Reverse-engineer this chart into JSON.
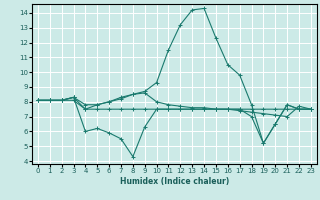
{
  "title": "",
  "xlabel": "Humidex (Indice chaleur)",
  "ylabel": "",
  "xlim": [
    -0.5,
    23.5
  ],
  "ylim": [
    3.8,
    14.6
  ],
  "yticks": [
    4,
    5,
    6,
    7,
    8,
    9,
    10,
    11,
    12,
    13,
    14
  ],
  "xticks": [
    0,
    1,
    2,
    3,
    4,
    5,
    6,
    7,
    8,
    9,
    10,
    11,
    12,
    13,
    14,
    15,
    16,
    17,
    18,
    19,
    20,
    21,
    22,
    23
  ],
  "bg_color": "#cceae7",
  "grid_color": "#ffffff",
  "line_color": "#1a7a6e",
  "lines": [
    {
      "x": [
        0,
        1,
        2,
        3,
        4,
        5,
        6,
        7,
        8,
        9,
        10,
        11,
        12,
        13,
        14,
        15,
        16,
        17,
        18,
        19,
        20,
        21,
        22,
        23
      ],
      "y": [
        8.1,
        8.1,
        8.1,
        8.3,
        6.0,
        6.2,
        5.9,
        5.5,
        4.3,
        6.3,
        7.5,
        7.5,
        7.5,
        7.5,
        7.5,
        7.5,
        7.5,
        7.5,
        7.0,
        5.2,
        6.5,
        7.8,
        7.5,
        7.5
      ]
    },
    {
      "x": [
        0,
        1,
        2,
        3,
        4,
        5,
        6,
        7,
        8,
        9,
        10,
        11,
        12,
        13,
        14,
        15,
        16,
        17,
        18,
        19,
        20,
        21,
        22,
        23
      ],
      "y": [
        8.1,
        8.1,
        8.1,
        8.1,
        7.5,
        7.5,
        7.5,
        7.5,
        7.5,
        7.5,
        7.5,
        7.5,
        7.5,
        7.5,
        7.5,
        7.5,
        7.5,
        7.5,
        7.5,
        7.5,
        7.5,
        7.5,
        7.5,
        7.5
      ]
    },
    {
      "x": [
        0,
        1,
        2,
        3,
        4,
        5,
        6,
        7,
        8,
        9,
        10,
        11,
        12,
        13,
        14,
        15,
        16,
        17,
        18,
        19,
        20,
        21,
        22,
        23
      ],
      "y": [
        8.1,
        8.1,
        8.1,
        8.3,
        7.8,
        7.8,
        8.0,
        8.2,
        8.5,
        8.6,
        8.0,
        7.8,
        7.7,
        7.6,
        7.6,
        7.5,
        7.5,
        7.4,
        7.3,
        7.2,
        7.1,
        7.0,
        7.7,
        7.5
      ]
    },
    {
      "x": [
        0,
        1,
        2,
        3,
        4,
        5,
        6,
        7,
        8,
        9,
        10,
        11,
        12,
        13,
        14,
        15,
        16,
        17,
        18,
        19,
        20,
        21,
        22,
        23
      ],
      "y": [
        8.1,
        8.1,
        8.1,
        8.3,
        7.5,
        7.8,
        8.0,
        8.3,
        8.5,
        8.7,
        9.3,
        11.5,
        13.2,
        14.2,
        14.3,
        12.3,
        10.5,
        9.8,
        7.8,
        5.2,
        6.5,
        7.8,
        7.5,
        7.5
      ]
    }
  ]
}
